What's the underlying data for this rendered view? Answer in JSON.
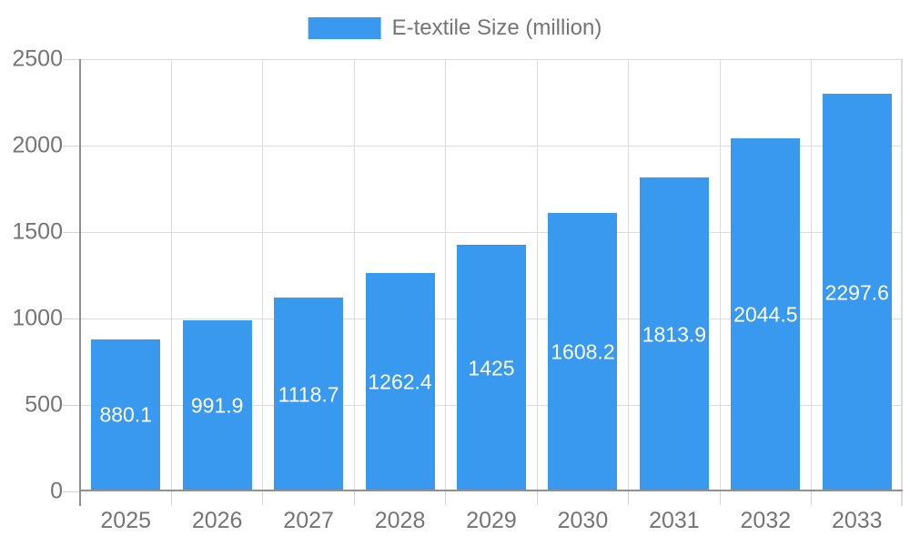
{
  "chart_data": {
    "type": "bar",
    "title": "",
    "legend": "E-textile Size (million)",
    "legend_position": "top",
    "categories": [
      "2025",
      "2026",
      "2027",
      "2028",
      "2029",
      "2030",
      "2031",
      "2032",
      "2033"
    ],
    "series": [
      {
        "name": "E-textile Size (million)",
        "values": [
          880.1,
          991.9,
          1118.7,
          1262.4,
          1425,
          1608.2,
          1813.9,
          2044.5,
          2297.6
        ]
      }
    ],
    "value_labels": [
      "880.1",
      "991.9",
      "1118.7",
      "1262.4",
      "1425",
      "1608.2",
      "1813.9",
      "2044.5",
      "2297.6"
    ],
    "xlabel": "",
    "ylabel": "",
    "ylim": [
      0,
      2500
    ],
    "yticks": [
      0,
      500,
      1000,
      1500,
      2000,
      2500
    ],
    "ytick_labels": [
      "0",
      "500",
      "1000",
      "1500",
      "2000",
      "2500"
    ],
    "grid": true,
    "colors": {
      "bar": "#3999EE",
      "grid_line": "#DCDCDC",
      "tick_line": "#D4D4D4",
      "axis_line": "#909090",
      "axis_text": "#757575",
      "value_label_text": "#FFFFFF",
      "background": "#FFFFFF"
    }
  }
}
